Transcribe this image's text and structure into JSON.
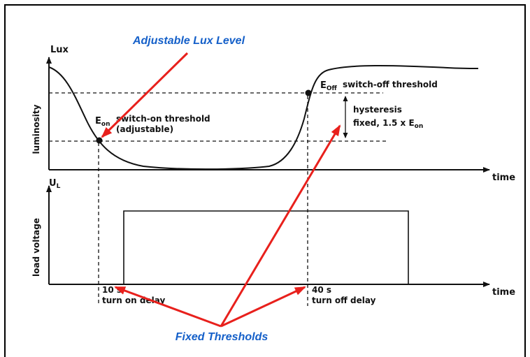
{
  "colors": {
    "annotation_text": "#1560c9",
    "arrow": "#e8201c",
    "line": "#111111",
    "frame": "#000000"
  },
  "top_graph": {
    "y_axis_unit": "Lux",
    "y_axis_label": "luminosity",
    "x_axis_label": "time",
    "on_point_symbol": "E",
    "on_point_sub": "on",
    "on_threshold_label": "switch-on threshold",
    "on_threshold_note": "(adjustable)",
    "off_point_symbol": "E",
    "off_point_sub": "Off",
    "off_threshold_label": "switch-off threshold",
    "hysteresis_label": "hysteresis",
    "hysteresis_value_prefix": "fixed, 1.5 x E",
    "hysteresis_value_sub": "on"
  },
  "bottom_graph": {
    "y_axis_symbol": "U",
    "y_axis_sub": "L",
    "y_axis_label": "load voltage",
    "x_axis_label": "time",
    "on_delay_value": "10 s",
    "on_delay_label": "turn on delay",
    "off_delay_value": "40 s",
    "off_delay_label": "turn off delay"
  },
  "annotations": {
    "adjustable": "Adjustable Lux Level",
    "fixed": "Fixed Thresholds"
  }
}
